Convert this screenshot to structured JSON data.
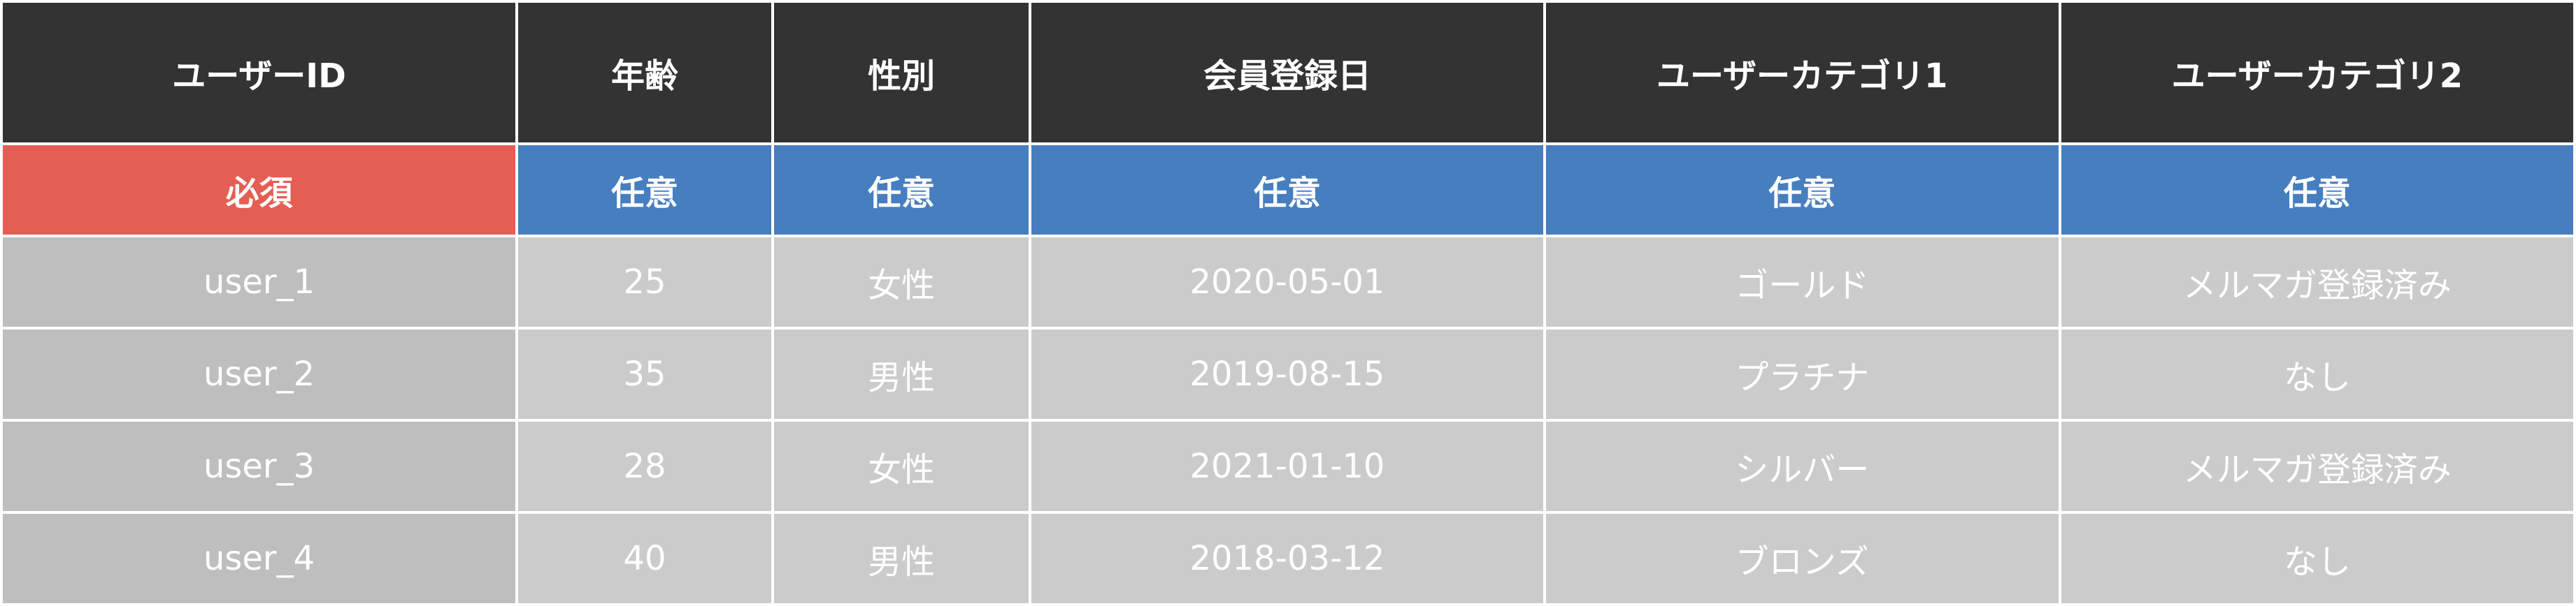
{
  "colors": {
    "header": "#333333",
    "required": "#e55e53",
    "optional": "#467ebf",
    "cell": "#cbcbcb",
    "first_column_cell": "#bebebe"
  },
  "headers": [
    "ユーザーID",
    "年齢",
    "性別",
    "会員登録日",
    "ユーザーカテゴリ1",
    "ユーザーカテゴリ2"
  ],
  "requirement": [
    "必須",
    "任意",
    "任意",
    "任意",
    "任意",
    "任意"
  ],
  "rows": [
    [
      "user_1",
      "25",
      "女性",
      "2020-05-01",
      "ゴールド",
      "メルマガ登録済み"
    ],
    [
      "user_2",
      "35",
      "男性",
      "2019-08-15",
      "プラチナ",
      "なし"
    ],
    [
      "user_3",
      "28",
      "女性",
      "2021-01-10",
      "シルバー",
      "メルマガ登録済み"
    ],
    [
      "user_4",
      "40",
      "男性",
      "2018-03-12",
      "ブロンズ",
      "なし"
    ]
  ]
}
